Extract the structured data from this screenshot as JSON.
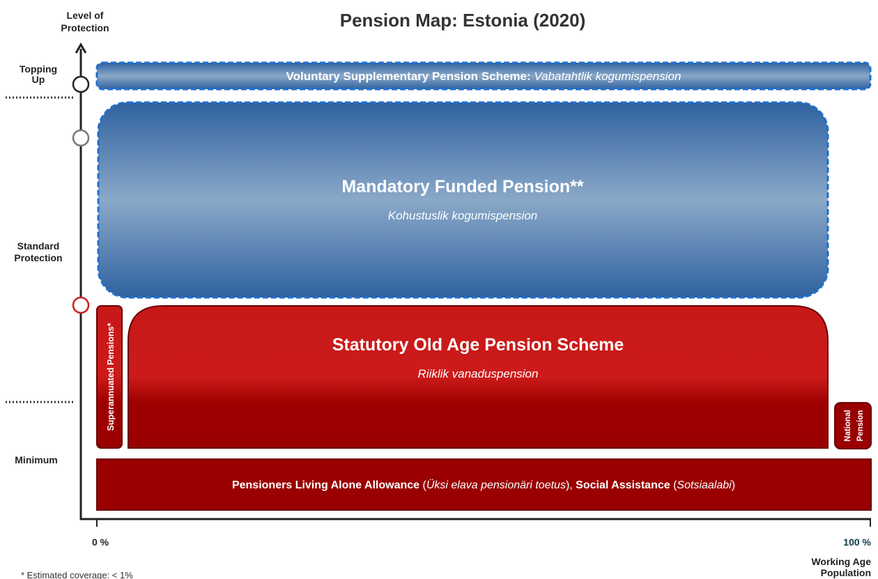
{
  "title": "Pension Map: Estonia (2020)",
  "y_axis": {
    "label": [
      "Level of",
      "Protection"
    ],
    "levels": [
      [
        "Topping",
        "Up"
      ],
      [
        "Standard",
        "Protection"
      ],
      [
        "Minimum"
      ]
    ]
  },
  "x_axis": {
    "start": "0 %",
    "end": "100 %",
    "label": [
      "Working Age",
      "Population"
    ]
  },
  "schemes": {
    "voluntary": {
      "name": "Voluntary Supplementary Pension Scheme:",
      "local": "Vabatahtlik kogumispension"
    },
    "mandatory": {
      "name": "Mandatory Funded Pension**",
      "local": "Kohustuslik kogumispension"
    },
    "statutory": {
      "name": "Statutory Old Age Pension Scheme",
      "local": "Riiklik vanaduspension"
    },
    "superannuated": {
      "name": "Superannuated Pensions*"
    },
    "national": {
      "name": [
        "National",
        "Pension"
      ]
    },
    "minimum": {
      "parts": [
        "Pensioners Living Alone Allowance",
        " (",
        "Üksi elava pensionäri toetus",
        "), ",
        "Social Assistance",
        " (",
        "Sotsiaalabi",
        ")"
      ]
    }
  },
  "footnote": "* Estimated coverage: < 1%"
}
